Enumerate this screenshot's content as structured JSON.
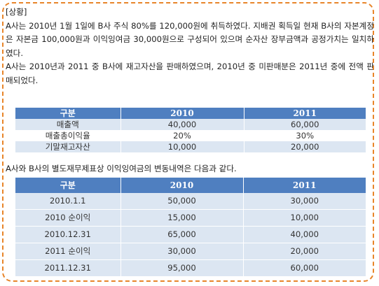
{
  "heading": "[상황]",
  "para1": "A사는 2010년 1월 1일에 B사 주식 80%를 120,000원에 취득하였다. 지배권 획득일 현재 B사의 자본계정은 자본금 100,000원과 이익잉여금 30,000원으로 구성되어 있으며 순자산 장부금액과 공정가치는 일치하였다.",
  "para2": "A사는 2010년과 2011 중 B사에 재고자산을 판매하였으며, 2010년 중 미판매분은 2011년 중에 전액 판매되었다.",
  "table1": {
    "headers": [
      "구분",
      "2010",
      "2011"
    ],
    "rows": [
      [
        "매출액",
        "40,000",
        "60,000"
      ],
      [
        "매출총이익율",
        "20%",
        "30%"
      ],
      [
        "기말재고자산",
        "10,000",
        "20,000"
      ]
    ]
  },
  "para3": "A사와 B사의 별도재무제표상 이익잉여금의 변동내역은 다음과 같다.",
  "table2": {
    "headers": [
      "구분",
      "2010",
      "2011"
    ],
    "rows": [
      [
        "2010.1.1",
        "50,000",
        "30,000"
      ],
      [
        "2010 순이익",
        "15,000",
        "10,000"
      ],
      [
        "2010.12.31",
        "65,000",
        "40,000"
      ],
      [
        "2011 순이익",
        "30,000",
        "20,000"
      ],
      [
        "2011.12.31",
        "95,000",
        "60,000"
      ]
    ]
  },
  "colors": {
    "border": "#e8852a",
    "header": "#4f7fc0",
    "stripe": "#dce6f2"
  }
}
